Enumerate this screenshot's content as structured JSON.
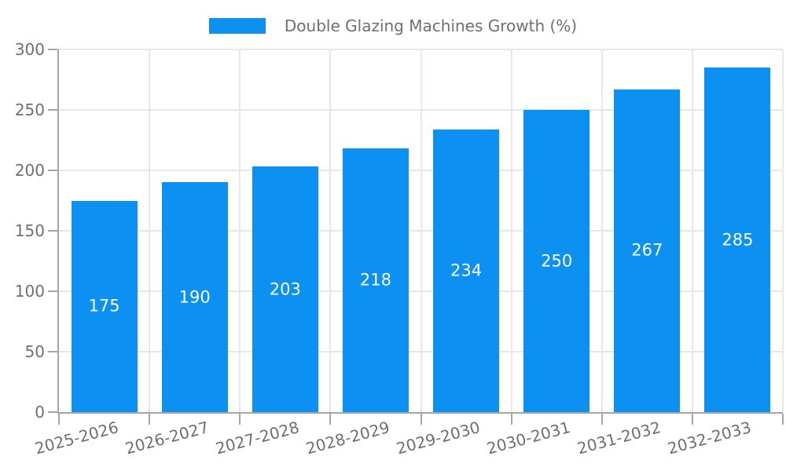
{
  "legend": {
    "label": "Double Glazing Machines Growth (%)"
  },
  "chart_data": {
    "type": "bar",
    "title": "",
    "xlabel": "",
    "ylabel": "",
    "categories": [
      "2025-2026",
      "2026-2027",
      "2027-2028",
      "2028-2029",
      "2029-2030",
      "2030-2031",
      "2031-2032",
      "2032-2033"
    ],
    "series": [
      {
        "name": "Double Glazing Machines Growth (%)",
        "values": [
          175,
          190,
          203,
          218,
          234,
          250,
          267,
          285
        ]
      }
    ],
    "value_labels": "inside-center",
    "ylim": [
      0,
      300
    ],
    "yticks": [
      0,
      50,
      100,
      150,
      200,
      250,
      300
    ],
    "grid": true,
    "legend_position": "top-center",
    "x_label_rotation_deg": -15,
    "colors": {
      "bar": "#0c90f2",
      "grid": "#e7e7e7",
      "axis": "#a6a6a6",
      "tick_text": "#6f6f6f",
      "value_text": "#ffffff",
      "background": "#ffffff"
    }
  }
}
